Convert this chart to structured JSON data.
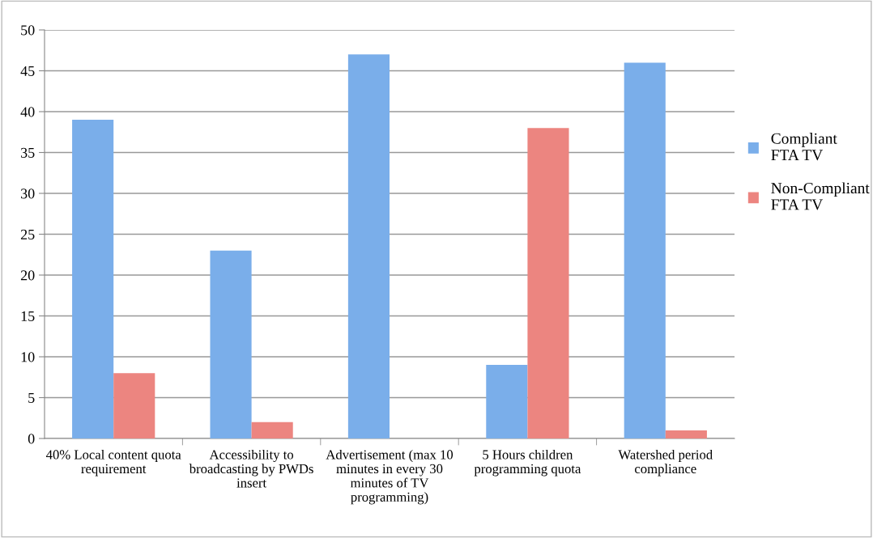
{
  "chart_data": {
    "type": "bar",
    "categories": [
      "40% Local content quota requirement",
      "Accessibility to broadcasting by PWDs insert",
      "Advertisement (max 10 minutes in every 30 minutes of TV programming)",
      "5 Hours children programming quota",
      "Watershed period compliance"
    ],
    "series": [
      {
        "name": "Compliant FTA TV",
        "color": "#7aaeea",
        "values": [
          39,
          23,
          47,
          9,
          46
        ]
      },
      {
        "name": "Non-Compliant FTA TV",
        "color": "#ec8580",
        "values": [
          8,
          2,
          0,
          38,
          1
        ]
      }
    ],
    "ylim": [
      0,
      50
    ],
    "yticks": [
      0,
      5,
      10,
      15,
      20,
      25,
      30,
      35,
      40,
      45,
      50
    ],
    "grid": "y",
    "legend": "right"
  }
}
